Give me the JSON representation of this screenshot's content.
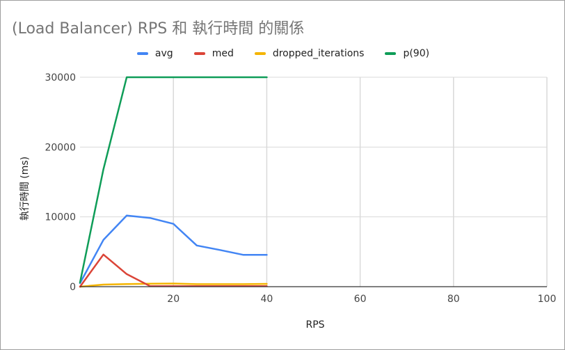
{
  "chart_data": {
    "type": "line",
    "title": "(Load Balancer) RPS 和 執行時間 的關係",
    "xlabel": "RPS",
    "ylabel": "執行時間 (ms)",
    "xlim": [
      0,
      100
    ],
    "ylim": [
      0,
      30000
    ],
    "x_ticks": [
      20,
      40,
      60,
      80,
      100
    ],
    "y_ticks": [
      0,
      10000,
      20000,
      30000
    ],
    "grid": true,
    "legend_position": "top",
    "series": [
      {
        "name": "avg",
        "color": "#4285f4",
        "points": [
          [
            0,
            500
          ],
          [
            5,
            6700
          ],
          [
            10,
            10200
          ],
          [
            15,
            9850
          ],
          [
            20,
            9000
          ],
          [
            25,
            5900
          ],
          [
            30,
            5250
          ],
          [
            35,
            4550
          ],
          [
            40,
            4550
          ]
        ]
      },
      {
        "name": "med",
        "color": "#db4437",
        "points": [
          [
            0,
            0
          ],
          [
            5,
            4600
          ],
          [
            10,
            1800
          ],
          [
            15,
            80
          ],
          [
            20,
            80
          ],
          [
            25,
            80
          ],
          [
            30,
            80
          ],
          [
            35,
            80
          ],
          [
            40,
            80
          ]
        ]
      },
      {
        "name": "dropped_iterations",
        "color": "#f4b400",
        "points": [
          [
            0,
            0
          ],
          [
            5,
            300
          ],
          [
            10,
            380
          ],
          [
            15,
            420
          ],
          [
            20,
            450
          ],
          [
            25,
            360
          ],
          [
            30,
            360
          ],
          [
            35,
            360
          ],
          [
            40,
            400
          ]
        ]
      },
      {
        "name": "p(90)",
        "color": "#0f9d58",
        "points": [
          [
            0,
            600
          ],
          [
            5,
            16800
          ],
          [
            10,
            30000
          ],
          [
            15,
            30000
          ],
          [
            20,
            30000
          ],
          [
            25,
            30000
          ],
          [
            30,
            30000
          ],
          [
            35,
            30000
          ],
          [
            40,
            30000
          ]
        ]
      }
    ]
  }
}
